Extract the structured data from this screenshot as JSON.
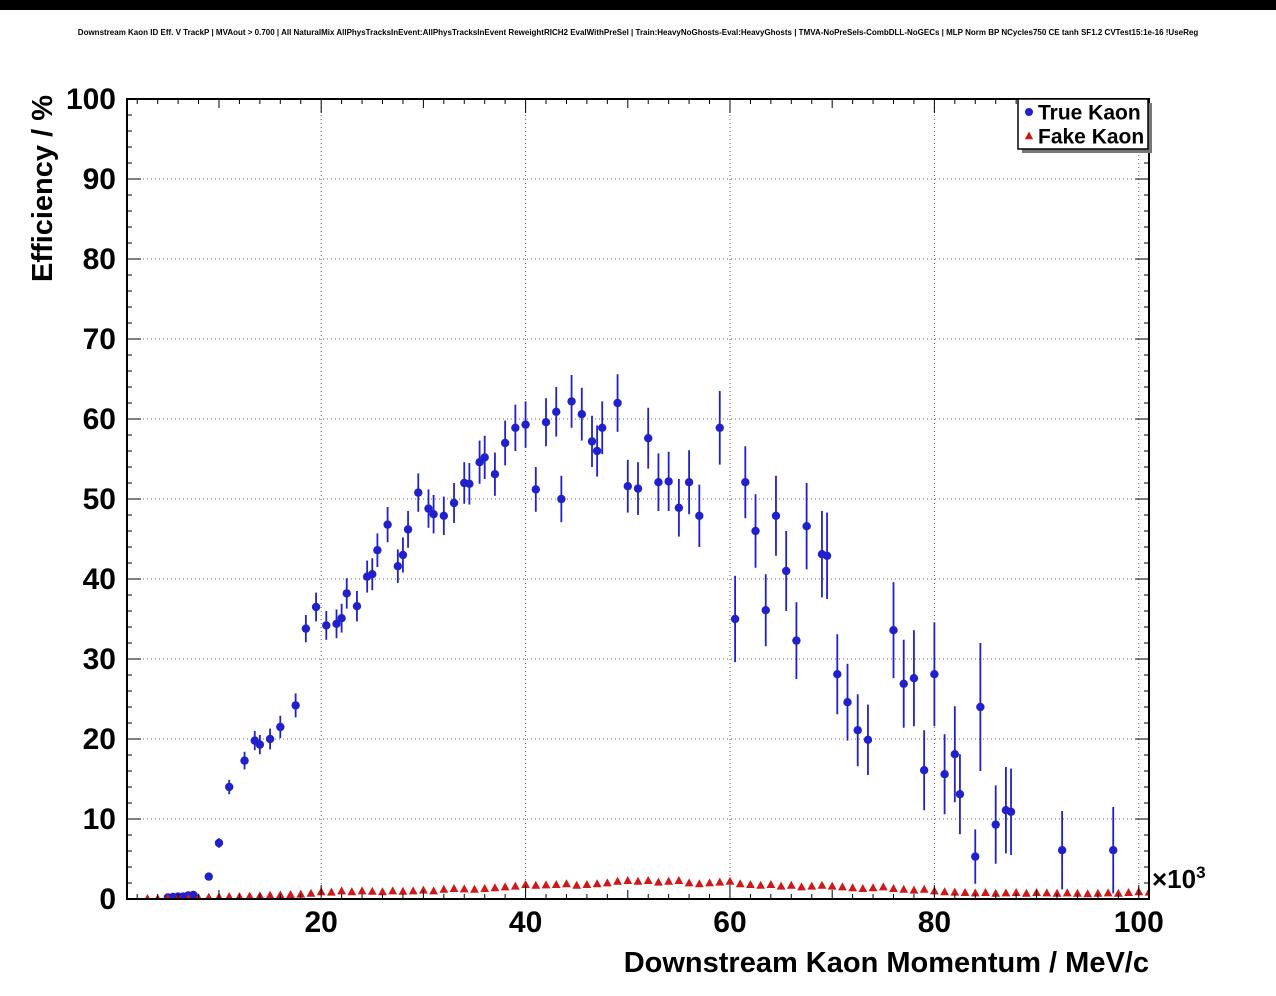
{
  "header": {
    "title": "Downstream Kaon ID Eff. V TrackP | MVAout > 0.700 | All NaturalMix AllPhysTracksInEvent:AllPhysTracksInEvent ReweightRICH2 EvalWithPreSel | Train:HeavyNoGhosts-Eval:HeavyGhosts | TMVA-NoPreSels-CombDLL-NoGECs | MLP Norm BP NCycles750 CE tanh SF1.2 CVTest15:1e-16 !UseReg"
  },
  "chart_data": {
    "type": "scatter",
    "title": "Downstream Kaon ID Eff. V TrackP | MVAout > 0.700 | All NaturalMix AllPhysTracksInEvent:AllPhysTracksInEvent ReweightRICH2 EvalWithPreSel | Train:HeavyNoGhosts-Eval:HeavyGhosts | TMVA-NoPreSels-CombDLL-NoGECs | MLP Norm BP NCycles750 CE tanh SF1.2 CVTest15:1e-16 !UseReg",
    "xlabel": "Downstream Kaon Momentum / MeV/c",
    "ylabel": "Efficiency / %",
    "x_axis_exponent": {
      "base": "×10",
      "sup": "3"
    },
    "xlim": [
      1,
      101
    ],
    "ylim": [
      0,
      100
    ],
    "grid": true,
    "x_ticks": {
      "major": [
        20,
        40,
        60,
        80,
        100
      ],
      "labels": [
        "20",
        "40",
        "60",
        "80",
        "100"
      ],
      "major_step": 20,
      "medium_step": 10,
      "minor_step": 2
    },
    "y_ticks": {
      "major": [
        0,
        10,
        20,
        30,
        40,
        50,
        60,
        70,
        80,
        90,
        100
      ],
      "labels": [
        "0",
        "10",
        "20",
        "30",
        "40",
        "50",
        "60",
        "70",
        "80",
        "90",
        "100"
      ],
      "major_step": 10,
      "minor_step": 2
    },
    "legend": {
      "position": "top-right",
      "entries": [
        {
          "label": "True Kaon",
          "color": "#2020cc",
          "marker": "circle"
        },
        {
          "label": "Fake Kaon",
          "color": "#d01818",
          "marker": "triangle"
        }
      ]
    },
    "series": [
      {
        "name": "True Kaon",
        "color": "#2020cc",
        "marker": "circle",
        "error_line_width": 1.8,
        "points": [
          [
            5,
            0.2,
            0.15
          ],
          [
            5.5,
            0.25,
            0.15
          ],
          [
            6,
            0.3,
            0.2
          ],
          [
            6.5,
            0.3,
            0.2
          ],
          [
            7,
            0.45,
            0.25
          ],
          [
            7.5,
            0.5,
            0.25
          ],
          [
            9,
            2.8,
            0.4
          ],
          [
            10,
            7,
            0.6
          ],
          [
            11,
            14,
            0.9
          ],
          [
            12.5,
            17.3,
            1.1
          ],
          [
            13.5,
            19.8,
            1.2
          ],
          [
            14,
            19.3,
            1.2
          ],
          [
            15,
            20,
            1.3
          ],
          [
            16,
            21.5,
            1.4
          ],
          [
            17.5,
            24.2,
            1.5
          ],
          [
            18.5,
            33.8,
            1.7
          ],
          [
            19.5,
            36.5,
            1.8
          ],
          [
            20.5,
            34.2,
            1.8
          ],
          [
            21.5,
            34.4,
            1.8
          ],
          [
            22,
            35.1,
            1.8
          ],
          [
            22.5,
            38.2,
            1.9
          ],
          [
            23.5,
            36.6,
            1.9
          ],
          [
            24.5,
            40.3,
            2
          ],
          [
            25,
            40.6,
            2
          ],
          [
            25.5,
            43.6,
            2.1
          ],
          [
            26.5,
            46.8,
            2.2
          ],
          [
            27.5,
            41.6,
            2.1
          ],
          [
            28,
            43,
            2.2
          ],
          [
            28.5,
            46.2,
            2.3
          ],
          [
            29.5,
            50.8,
            2.4
          ],
          [
            30.5,
            48.8,
            2.4
          ],
          [
            31,
            48.1,
            2.4
          ],
          [
            32,
            47.9,
            2.4
          ],
          [
            33,
            49.5,
            2.5
          ],
          [
            34,
            52,
            2.6
          ],
          [
            34.5,
            51.9,
            2.6
          ],
          [
            35.5,
            54.6,
            2.7
          ],
          [
            36,
            55.2,
            2.7
          ],
          [
            37,
            53.1,
            2.7
          ],
          [
            38,
            57,
            2.8
          ],
          [
            39,
            58.9,
            2.9
          ],
          [
            40,
            59.3,
            2.9
          ],
          [
            41,
            51.2,
            2.8
          ],
          [
            42,
            59.6,
            3
          ],
          [
            43,
            60.9,
            3.1
          ],
          [
            43.5,
            50,
            2.9
          ],
          [
            44.5,
            62.2,
            3.3
          ],
          [
            45.5,
            60.6,
            3.3
          ],
          [
            46.5,
            57.2,
            3.2
          ],
          [
            47,
            56,
            3.2
          ],
          [
            47.5,
            58.9,
            3.3
          ],
          [
            49,
            62,
            3.6
          ],
          [
            50,
            51.6,
            3.3
          ],
          [
            51,
            51.3,
            3.3
          ],
          [
            52,
            57.6,
            3.8
          ],
          [
            53,
            52.1,
            3.6
          ],
          [
            54,
            52.2,
            3.7
          ],
          [
            55,
            48.9,
            3.6
          ],
          [
            56,
            52.1,
            4
          ],
          [
            57,
            47.9,
            3.9
          ],
          [
            59,
            58.9,
            4.6
          ],
          [
            60.5,
            35,
            5.4
          ],
          [
            61.5,
            52.1,
            4.5
          ],
          [
            62.5,
            46,
            4.6
          ],
          [
            63.5,
            36.1,
            4.5
          ],
          [
            64.5,
            47.9,
            5
          ],
          [
            65.5,
            41,
            5
          ],
          [
            66.5,
            32.3,
            4.8
          ],
          [
            67.5,
            46.6,
            5.4
          ],
          [
            69,
            43.1,
            5.4
          ],
          [
            69.5,
            42.9,
            5.4
          ],
          [
            70.5,
            28.1,
            5
          ],
          [
            71.5,
            24.6,
            4.8
          ],
          [
            72.5,
            21.1,
            4.5
          ],
          [
            73.5,
            19.9,
            4.4
          ],
          [
            76,
            33.6,
            6
          ],
          [
            77,
            26.9,
            5.5
          ],
          [
            78,
            27.6,
            6
          ],
          [
            79,
            16.1,
            5
          ],
          [
            80,
            28.1,
            6.5
          ],
          [
            81,
            15.6,
            5
          ],
          [
            82,
            18.1,
            6
          ],
          [
            82.5,
            13.1,
            5
          ],
          [
            84,
            5.3,
            3.4
          ],
          [
            84.5,
            24,
            8
          ],
          [
            86,
            9.3,
            4.9
          ],
          [
            87,
            11.1,
            5.4
          ],
          [
            87.5,
            10.9,
            5.4
          ],
          [
            92.5,
            6.1,
            4.9
          ],
          [
            97.5,
            6.1,
            5.4
          ]
        ]
      },
      {
        "name": "Fake Kaon",
        "color": "#d01818",
        "marker": "triangle",
        "error_line_width": 1.2,
        "default_err": 0.15,
        "points": [
          [
            3,
            0.05
          ],
          [
            4,
            0.05
          ],
          [
            5,
            0.08
          ],
          [
            6,
            0.1
          ],
          [
            7,
            0.1
          ],
          [
            8,
            0.15
          ],
          [
            9,
            0.2
          ],
          [
            10,
            0.25
          ],
          [
            11,
            0.3
          ],
          [
            12,
            0.3
          ],
          [
            13,
            0.35
          ],
          [
            14,
            0.4
          ],
          [
            15,
            0.45
          ],
          [
            16,
            0.5
          ],
          [
            17,
            0.55
          ],
          [
            18,
            0.6
          ],
          [
            19,
            0.7
          ],
          [
            20,
            0.9
          ],
          [
            21,
            0.85
          ],
          [
            22,
            1.0
          ],
          [
            23,
            0.9
          ],
          [
            24,
            1.0
          ],
          [
            25,
            0.95
          ],
          [
            26,
            0.9
          ],
          [
            27,
            1.0
          ],
          [
            28,
            0.95
          ],
          [
            29,
            1.0
          ],
          [
            30,
            1.1
          ],
          [
            31,
            1.0
          ],
          [
            32,
            1.2
          ],
          [
            33,
            1.3
          ],
          [
            34,
            1.25
          ],
          [
            35,
            1.2
          ],
          [
            36,
            1.3
          ],
          [
            37,
            1.4
          ],
          [
            38,
            1.5
          ],
          [
            39,
            1.6
          ],
          [
            40,
            1.8
          ],
          [
            41,
            1.7
          ],
          [
            42,
            1.75
          ],
          [
            43,
            1.8
          ],
          [
            44,
            1.9
          ],
          [
            45,
            1.7
          ],
          [
            46,
            1.8
          ],
          [
            47,
            1.9
          ],
          [
            48,
            2.0
          ],
          [
            49,
            2.2
          ],
          [
            50,
            2.3
          ],
          [
            51,
            2.2
          ],
          [
            52,
            2.3
          ],
          [
            53,
            2.1
          ],
          [
            54,
            2.2
          ],
          [
            55,
            2.3
          ],
          [
            56,
            2.0
          ],
          [
            57,
            1.9
          ],
          [
            58,
            2.0
          ],
          [
            59,
            2.1
          ],
          [
            60,
            2.2
          ],
          [
            61,
            1.9
          ],
          [
            62,
            1.8
          ],
          [
            63,
            1.7
          ],
          [
            64,
            1.8
          ],
          [
            65,
            1.6
          ],
          [
            66,
            1.7
          ],
          [
            67,
            1.5
          ],
          [
            68,
            1.6
          ],
          [
            69,
            1.7
          ],
          [
            70,
            1.6
          ],
          [
            71,
            1.5
          ],
          [
            72,
            1.4
          ],
          [
            73,
            1.3
          ],
          [
            74,
            1.4
          ],
          [
            75,
            1.5
          ],
          [
            76,
            1.3
          ],
          [
            77,
            1.2
          ],
          [
            78,
            1.1
          ],
          [
            79,
            1.2
          ],
          [
            80,
            1.0
          ],
          [
            81,
            0.9
          ],
          [
            82,
            0.85
          ],
          [
            83,
            0.8
          ],
          [
            84,
            0.75
          ],
          [
            85,
            0.8
          ],
          [
            86,
            0.7
          ],
          [
            87,
            0.75
          ],
          [
            88,
            0.8
          ],
          [
            89,
            0.7
          ],
          [
            90,
            0.8
          ],
          [
            91,
            0.75
          ],
          [
            92,
            0.7
          ],
          [
            93,
            0.75
          ],
          [
            94,
            0.7
          ],
          [
            95,
            0.65
          ],
          [
            96,
            0.7
          ],
          [
            97,
            0.75
          ],
          [
            98,
            0.7
          ],
          [
            99,
            0.8
          ],
          [
            100,
            0.9
          ],
          [
            101,
            0.85
          ]
        ]
      }
    ]
  }
}
